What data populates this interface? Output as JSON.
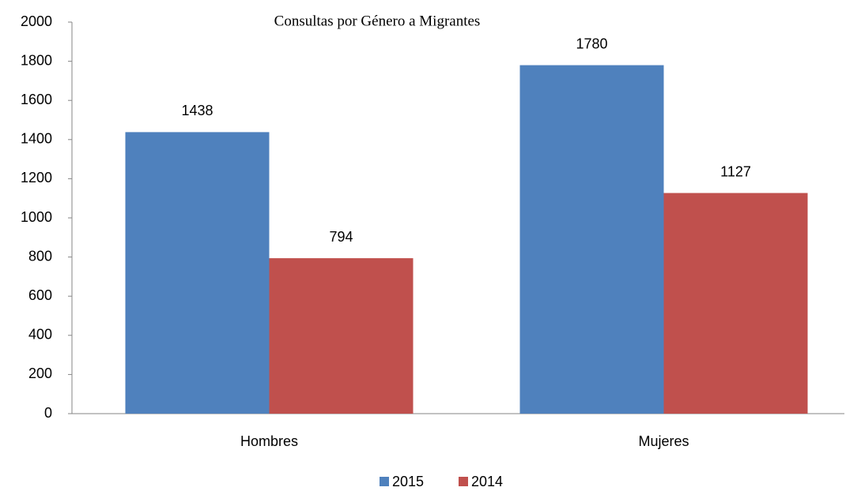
{
  "chart_data": {
    "type": "bar",
    "title": "Consultas por Género a Migrantes",
    "categories": [
      "Hombres",
      "Mujeres"
    ],
    "series": [
      {
        "name": "2015",
        "color": "#4f81bd",
        "values": [
          1438,
          1780
        ]
      },
      {
        "name": "2014",
        "color": "#c0504d",
        "values": [
          794,
          1127
        ]
      }
    ],
    "ylim": [
      0,
      2000
    ],
    "yticks": [
      0,
      200,
      400,
      600,
      800,
      1000,
      1200,
      1400,
      1600,
      1800,
      2000
    ],
    "grid": false,
    "legend": "bottom"
  }
}
